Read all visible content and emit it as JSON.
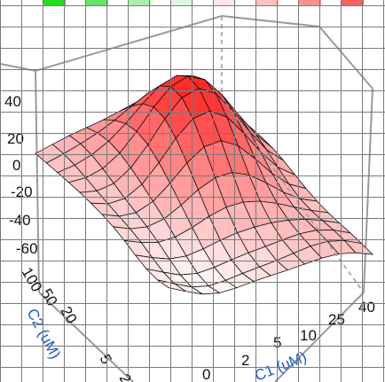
{
  "colors": {
    "surface_low": "#ffffff",
    "surface_high": "#ff2020",
    "mesh_line": "#111111",
    "box_line": "#9a9a9a",
    "grid_line": "#7a7a7a",
    "axis_title": "#1a56d6",
    "legend": [
      "#22dd22",
      "#66e466",
      "#a8f0a8",
      "#ddf7dd",
      "#ffe6e6",
      "#ffc0c0",
      "#ff9090",
      "#ff6060",
      "#ff2020"
    ]
  },
  "chart_data": {
    "type": "surface",
    "title": "",
    "xlabel": "C1 (uM)",
    "ylabel": "C2 (uM)",
    "zlabel": "",
    "x_ticks": [
      "0",
      "2",
      "5",
      "10",
      "25",
      "40"
    ],
    "y_ticks": [
      "2",
      "5",
      "20",
      "50",
      "100"
    ],
    "z_ticks": [
      "40",
      "20",
      "0",
      "-20",
      "-40",
      "-60"
    ],
    "zlim": [
      -60,
      50
    ],
    "legend_swatches": 9,
    "grid_overlay": true
  }
}
